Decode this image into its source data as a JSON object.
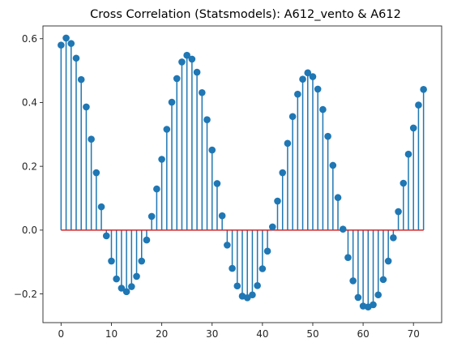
{
  "chart_data": {
    "type": "stem",
    "title": "Cross Correlation (Statsmodels): A612_vento & A612",
    "xlabel": "",
    "ylabel": "",
    "xlim": [
      -3.6,
      75.6
    ],
    "ylim": [
      -0.29,
      0.64
    ],
    "xticks": [
      0,
      10,
      20,
      30,
      40,
      50,
      60,
      70
    ],
    "xtick_labels": [
      "0",
      "10",
      "20",
      "30",
      "40",
      "50",
      "60",
      "70"
    ],
    "yticks": [
      -0.2,
      0.0,
      0.2,
      0.4,
      0.6
    ],
    "ytick_labels": [
      "−0.2",
      "0.0",
      "0.2",
      "0.4",
      "0.6"
    ],
    "grid": false,
    "baseline": 0,
    "colors": {
      "stem": "#1f77b4",
      "baseline": "#d62728",
      "axes": "#262626"
    },
    "x": [
      0,
      1,
      2,
      3,
      4,
      5,
      6,
      7,
      8,
      9,
      10,
      11,
      12,
      13,
      14,
      15,
      16,
      17,
      18,
      19,
      20,
      21,
      22,
      23,
      24,
      25,
      26,
      27,
      28,
      29,
      30,
      31,
      32,
      33,
      34,
      35,
      36,
      37,
      38,
      39,
      40,
      41,
      42,
      43,
      44,
      45,
      46,
      47,
      48,
      49,
      50,
      51,
      52,
      53,
      54,
      55,
      56,
      57,
      58,
      59,
      60,
      61,
      62,
      63,
      64,
      65,
      66,
      67,
      68,
      69,
      70,
      71,
      72
    ],
    "values": [
      0.58,
      0.602,
      0.585,
      0.539,
      0.472,
      0.386,
      0.285,
      0.18,
      0.073,
      -0.018,
      -0.097,
      -0.153,
      -0.182,
      -0.193,
      -0.177,
      -0.145,
      -0.097,
      -0.031,
      0.043,
      0.129,
      0.222,
      0.316,
      0.401,
      0.475,
      0.527,
      0.548,
      0.536,
      0.495,
      0.431,
      0.346,
      0.251,
      0.146,
      0.045,
      -0.047,
      -0.12,
      -0.175,
      -0.207,
      -0.212,
      -0.203,
      -0.174,
      -0.121,
      -0.066,
      0.01,
      0.091,
      0.18,
      0.272,
      0.356,
      0.426,
      0.473,
      0.493,
      0.481,
      0.442,
      0.378,
      0.294,
      0.203,
      0.102,
      0.003,
      -0.086,
      -0.159,
      -0.211,
      -0.238,
      -0.241,
      -0.234,
      -0.203,
      -0.155,
      -0.097,
      -0.024,
      0.058,
      0.147,
      0.238,
      0.32,
      0.392,
      0.441
    ]
  }
}
